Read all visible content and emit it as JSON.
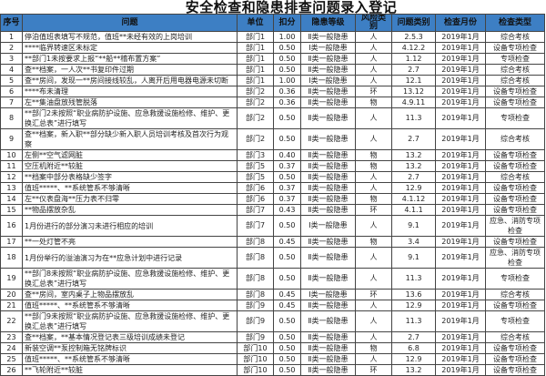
{
  "title": "安全检查和隐患排查问题录入登记",
  "columns": [
    "序号",
    "问题",
    "单位",
    "扣分",
    "隐患等级",
    "风险类别",
    "问题类别",
    "检查月份",
    "检查类型"
  ],
  "header_color": "#3d7fc4",
  "rows": [
    [
      "1",
      "停泊值班表填写不规范，值班**未经有效的上岗培训",
      "部门1",
      "1.00",
      "Ⅱ类一般隐患",
      "人",
      "2.5.3",
      "2019年1月",
      "综合考核"
    ],
    [
      "2",
      "****临界转速区未标定",
      "部门1",
      "0.50",
      "Ⅰ类一般隐患",
      "人",
      "4.12.2",
      "2019年1月",
      "设备专项检查"
    ],
    [
      "3",
      "**部门1未按要求上报“**船**稽布置方案”",
      "部门1",
      "0.50",
      "Ⅱ类一般隐患",
      "人",
      "1.12",
      "2019年1月",
      "专项检查"
    ],
    [
      "4",
      "查**档案，一人次**书复印件过期",
      "部门1",
      "0.50",
      "Ⅱ类一般隐患",
      "人",
      "2.7",
      "2019年1月",
      "综合考核"
    ],
    [
      "5",
      "查**房间，发现一**房间接线较乱，人离开后用电器电源未切断",
      "部门1",
      "1.00",
      "Ⅰ类一般隐患",
      "人",
      "12.1",
      "2019年1月",
      "综合考核"
    ],
    [
      "6",
      "****布未清理",
      "部门2",
      "0.36",
      "Ⅱ类一般隐患",
      "环",
      "13.12",
      "2019年1月",
      "设备专项检查"
    ],
    [
      "7",
      "左**集油盘放残管脱落",
      "部门2",
      "0.36",
      "Ⅱ类一般隐患",
      "物",
      "4.9.11",
      "2019年1月",
      "设备专项检查"
    ],
    [
      "8",
      "**部门2未按照“职业病防护设施、应急救援设施检修、维护、更换汇总表”进行填写",
      "部门2",
      "0.50",
      "Ⅱ类一般隐患",
      "人",
      "11.3",
      "2019年1月",
      "专项检查"
    ],
    [
      "9",
      "查**档案，新入职**部分缺少新入职人员培训考核及首次行为观察",
      "部门2",
      "0.50",
      "Ⅱ类一般隐患",
      "人",
      "2.7",
      "2019年1月",
      "综合考核"
    ],
    [
      "10",
      "左侧**空气滤网脏",
      "部门3",
      "0.40",
      "Ⅱ类一般隐患",
      "物",
      "13.2",
      "2019年1月",
      "设备专项检查"
    ],
    [
      "11",
      "空压机附近**较脏",
      "部门5",
      "0.37",
      "Ⅱ类一般隐患",
      "物",
      "13.2",
      "2019年1月",
      "设备专项检查"
    ],
    [
      "12",
      "**档案中部分表格缺少签字",
      "部门5",
      "0.50",
      "Ⅱ类一般隐患",
      "人",
      "2.7",
      "2019年1月",
      "综合考核"
    ],
    [
      "13",
      "值班*****、**系统管系不够清晰",
      "部门6",
      "0.37",
      "Ⅱ类一般隐患",
      "人",
      "12.9",
      "2019年1月",
      "设备专项检查"
    ],
    [
      "14",
      "左**仪表盘海**压力表不归零",
      "部门6",
      "0.37",
      "Ⅱ类一般隐患",
      "物",
      "4.1.12",
      "2019年1月",
      "设备专项检查"
    ],
    [
      "15",
      "**物品摆放杂乱",
      "部门7",
      "0.43",
      "Ⅱ类一般隐患",
      "环",
      "4.1.1",
      "2019年1月",
      "设备专项检查"
    ],
    [
      "16",
      "1月份进行的部分演习未进行相应的培训",
      "部门7",
      "0.50",
      "Ⅰ类一般隐患",
      "人",
      "9.1",
      "2019年1月",
      "应急、消防专项检查"
    ],
    [
      "17",
      "**一处灯管不亮",
      "部门8",
      "0.45",
      "Ⅱ类一般隐患",
      "物",
      "3.4",
      "2019年1月",
      "设备专项检查"
    ],
    [
      "18",
      "1月份举行的溢油演习为在**应急计划中进行记录",
      "部门8",
      "0.50",
      "Ⅱ类一般隐患",
      "人",
      "9.1",
      "2019年1月",
      "应急、消防专项检查"
    ],
    [
      "19",
      "**部门8未按照“职业病防护设施、应急救援设施检修、维护、更换汇总表”进行填写",
      "部门8",
      "0.50",
      "Ⅱ类一般隐患",
      "人",
      "11.3",
      "2019年1月",
      "专项检查"
    ],
    [
      "20",
      "查**房间，室内桌子上物品摆放乱",
      "部门8",
      "0.45",
      "Ⅰ类一般隐患",
      "环",
      "13.6",
      "2019年1月",
      "综合考核"
    ],
    [
      "21",
      "值班*****、**系统管系不够清晰",
      "部门9",
      "0.45",
      "Ⅱ类一般隐患",
      "人",
      "12.9",
      "2019年1月",
      "设备专项检查"
    ],
    [
      "22",
      "**部门9未按照“职业病防护设施、应急救援设施检修、维护、更换汇总表”进行填写",
      "部门9",
      "0.50",
      "Ⅱ类一般隐患",
      "人",
      "11.3",
      "2019年1月",
      "专项检查"
    ],
    [
      "23",
      "查**档案，**基本情况登记表三级培训成绩未登记",
      "部门9",
      "0.50",
      "Ⅱ类一般隐患",
      "人",
      "2.7",
      "2019年1月",
      "综合考核"
    ],
    [
      "24",
      "新装空调**泵控制箱无铭牌标识",
      "部门10",
      "0.50",
      "Ⅱ类一般隐患",
      "物",
      "6.8",
      "2019年1月",
      "设备专项检查"
    ],
    [
      "25",
      "值班*****、**系统管系不够清晰",
      "部门10",
      "0.50",
      "Ⅱ类一般隐患",
      "人",
      "12.9",
      "2019年1月",
      "设备专项检查"
    ],
    [
      "26",
      "**飞轮附近**较脏",
      "部门10",
      "0.50",
      "Ⅱ类一般隐患",
      "环",
      "13.2",
      "2019年1月",
      "设备专项检查"
    ]
  ]
}
